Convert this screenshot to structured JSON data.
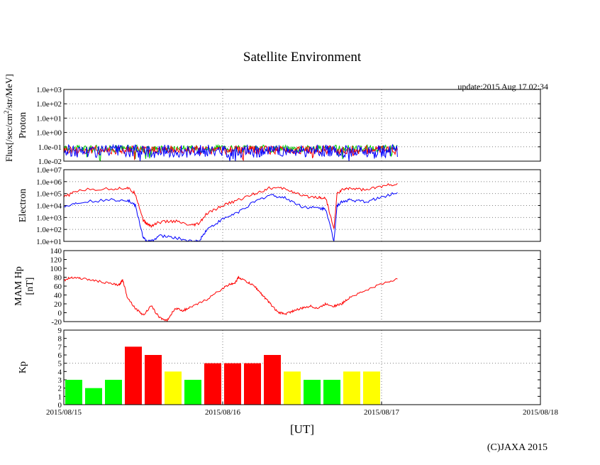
{
  "title": "Satellite Environment",
  "update_text": "update:2015 Aug 17 02:34",
  "x_axis_label": "[UT]",
  "copyright": "(C)JAXA 2015",
  "colors": {
    "red": "#ff0000",
    "blue": "#0000ff",
    "green": "#00cc00",
    "kp_red": "#ff0000",
    "kp_yellow": "#ffff00",
    "kp_green": "#00ff00",
    "grid": "#808080",
    "frame": "#000000"
  },
  "chart_data": [
    {
      "id": "proton",
      "type": "line",
      "ylabel_lines": [
        "Proton"
      ],
      "flux_label": "Flux[/sec/cm^2/str/MeV]",
      "yscale": "log",
      "ylim": [
        0.01,
        1000
      ],
      "ytick_labels": [
        "1.0e-02",
        "1.0e-01",
        "1.0e+00",
        "1.0e+01",
        "1.0e+02",
        "1.0e+03"
      ],
      "xlim_days": [
        0,
        3
      ],
      "series": [
        {
          "name": "proton-green",
          "color": "green",
          "level": 0.075,
          "noise": 0.25,
          "x_end": 2.1
        },
        {
          "name": "proton-red",
          "color": "red",
          "level": 0.06,
          "noise": 0.3,
          "x_end": 2.1
        },
        {
          "name": "proton-blue",
          "color": "blue",
          "level": 0.05,
          "noise": 0.45,
          "x_end": 2.1
        }
      ]
    },
    {
      "id": "electron",
      "type": "line",
      "ylabel_lines": [
        "Electron"
      ],
      "yscale": "log",
      "ylim": [
        10,
        10000000
      ],
      "ytick_labels": [
        "1.0e+01",
        "1.0e+02",
        "1.0e+03",
        "1.0e+04",
        "1.0e+05",
        "1.0e+06",
        "1.0e+07"
      ],
      "xlim_days": [
        0,
        3
      ],
      "series": [
        {
          "name": "electron-red",
          "color": "red",
          "x": [
            0,
            0.1,
            0.3,
            0.4,
            0.45,
            0.5,
            0.52,
            0.55,
            0.6,
            0.7,
            0.8,
            0.85,
            0.9,
            1.0,
            1.1,
            1.2,
            1.3,
            1.4,
            1.5,
            1.6,
            1.65,
            1.7,
            1.72,
            1.75,
            1.8,
            1.9,
            2.0,
            2.1
          ],
          "y": [
            50000,
            200000,
            250000,
            300000,
            100000,
            600,
            300,
            200,
            400,
            500,
            200,
            300,
            2000,
            10000,
            30000,
            100000,
            300000,
            250000,
            60000,
            50000,
            40000,
            100,
            100000,
            200000,
            300000,
            200000,
            400000,
            700000
          ]
        },
        {
          "name": "electron-blue",
          "color": "blue",
          "x": [
            0,
            0.1,
            0.3,
            0.4,
            0.45,
            0.5,
            0.52,
            0.55,
            0.6,
            0.7,
            0.8,
            0.85,
            0.9,
            1.0,
            1.1,
            1.2,
            1.3,
            1.4,
            1.5,
            1.6,
            1.65,
            1.7,
            1.72,
            1.75,
            1.8,
            1.9,
            2.0,
            2.1
          ],
          "y": [
            8000,
            20000,
            30000,
            30000,
            10000,
            20,
            10,
            10,
            30,
            20,
            10,
            10,
            100,
            700,
            3000,
            20000,
            80000,
            40000,
            8000,
            6000,
            5000,
            10,
            10000,
            20000,
            30000,
            20000,
            50000,
            120000
          ]
        }
      ]
    },
    {
      "id": "mam",
      "type": "line",
      "ylabel_lines": [
        "MAM Hp",
        "[nT]"
      ],
      "yscale": "linear",
      "ylim": [
        -20,
        140
      ],
      "ytick_labels": [
        "-20",
        "0",
        "20",
        "40",
        "60",
        "80",
        "100",
        "120",
        "140"
      ],
      "xlim_days": [
        0,
        3
      ],
      "series": [
        {
          "name": "mam-hp",
          "color": "red",
          "x": [
            0,
            0.05,
            0.1,
            0.2,
            0.3,
            0.35,
            0.37,
            0.4,
            0.45,
            0.5,
            0.55,
            0.6,
            0.65,
            0.7,
            0.75,
            0.8,
            0.9,
            1.0,
            1.05,
            1.08,
            1.1,
            1.15,
            1.2,
            1.25,
            1.3,
            1.35,
            1.4,
            1.45,
            1.5,
            1.55,
            1.6,
            1.65,
            1.7,
            1.75,
            1.8,
            1.9,
            2.0,
            2.1
          ],
          "y": [
            73,
            80,
            78,
            72,
            65,
            62,
            75,
            35,
            10,
            -5,
            15,
            -10,
            -18,
            10,
            5,
            12,
            30,
            55,
            65,
            68,
            80,
            70,
            60,
            40,
            20,
            0,
            -2,
            5,
            10,
            15,
            10,
            20,
            15,
            20,
            35,
            50,
            65,
            76
          ]
        }
      ]
    },
    {
      "id": "kp",
      "type": "bar",
      "ylabel_lines": [
        "Kp"
      ],
      "yscale": "linear",
      "ylim": [
        0,
        9
      ],
      "ytick_labels": [
        "0",
        "1",
        "2",
        "3",
        "4",
        "5",
        "6",
        "7",
        "8",
        "9"
      ],
      "xlim_days": [
        0,
        3
      ],
      "bin_days": 0.125,
      "values": [
        3,
        2,
        3,
        7,
        6,
        4,
        3,
        5,
        5,
        5,
        6,
        4,
        3,
        3,
        4,
        4
      ],
      "bar_colors": [
        "green",
        "green",
        "green",
        "red",
        "red",
        "yellow",
        "green",
        "red",
        "red",
        "red",
        "red",
        "yellow",
        "green",
        "green",
        "yellow",
        "yellow"
      ],
      "xtick_labels": [
        "2015/08/15",
        "2015/08/16",
        "2015/08/17",
        "2015/08/18"
      ]
    }
  ]
}
